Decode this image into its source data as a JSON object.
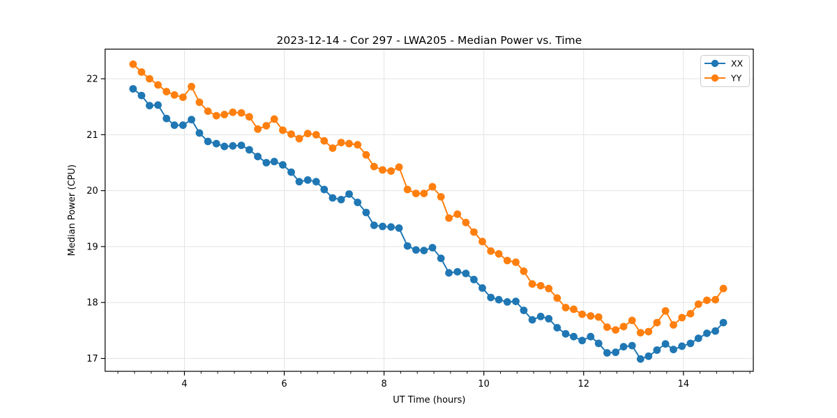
{
  "chart_data": {
    "type": "line",
    "title": "2023-12-14 - Cor 297 - LWA205 - Median Power vs. Time",
    "xlabel": "UT Time (hours)",
    "ylabel": "Median Power (CPU)",
    "xlim": [
      2.41,
      15.4
    ],
    "ylim": [
      16.77,
      22.53
    ],
    "x_major_ticks": [
      4,
      6,
      8,
      10,
      12,
      14
    ],
    "x_minor_tick_step": 0.3333,
    "y_major_ticks": [
      17,
      18,
      19,
      20,
      21,
      22
    ],
    "grid": true,
    "grid_color": "#e3e3e3",
    "spine_color": "#000000",
    "legend_position": "upper right",
    "legend_labels": [
      "XX",
      "YY"
    ],
    "x": [
      2.97,
      3.14,
      3.3,
      3.47,
      3.64,
      3.8,
      3.97,
      4.14,
      4.3,
      4.47,
      4.64,
      4.8,
      4.97,
      5.14,
      5.3,
      5.47,
      5.64,
      5.8,
      5.97,
      6.14,
      6.3,
      6.47,
      6.64,
      6.8,
      6.97,
      7.14,
      7.3,
      7.47,
      7.64,
      7.8,
      7.97,
      8.14,
      8.3,
      8.47,
      8.64,
      8.8,
      8.97,
      9.14,
      9.3,
      9.47,
      9.64,
      9.8,
      9.97,
      10.14,
      10.3,
      10.47,
      10.64,
      10.8,
      10.97,
      11.14,
      11.3,
      11.47,
      11.64,
      11.8,
      11.97,
      12.14,
      12.3,
      12.47,
      12.64,
      12.8,
      12.97,
      13.14,
      13.3,
      13.47,
      13.64,
      13.8,
      13.97,
      14.14,
      14.3,
      14.47,
      14.64,
      14.8
    ],
    "series": [
      {
        "name": "XX",
        "color": "#1f77b4",
        "values": [
          21.82,
          21.7,
          21.52,
          21.53,
          21.29,
          21.17,
          21.17,
          21.27,
          21.03,
          20.88,
          20.84,
          20.79,
          20.8,
          20.81,
          20.73,
          20.61,
          20.5,
          20.52,
          20.46,
          20.33,
          20.16,
          20.19,
          20.16,
          20.02,
          19.87,
          19.84,
          19.94,
          19.79,
          19.61,
          19.38,
          19.36,
          19.35,
          19.33,
          19.01,
          18.94,
          18.93,
          18.98,
          18.79,
          18.53,
          18.55,
          18.52,
          18.41,
          18.26,
          18.09,
          18.05,
          18.01,
          18.02,
          17.86,
          17.69,
          17.75,
          17.71,
          17.55,
          17.44,
          17.39,
          17.32,
          17.39,
          17.27,
          17.1,
          17.11,
          17.21,
          17.23,
          16.99,
          17.04,
          17.15,
          17.26,
          17.16,
          17.22,
          17.27,
          17.36,
          17.45,
          17.49,
          17.64
        ]
      },
      {
        "name": "YY",
        "color": "#ff7f0e",
        "values": [
          22.26,
          22.12,
          22.0,
          21.89,
          21.77,
          21.71,
          21.67,
          21.86,
          21.58,
          21.42,
          21.34,
          21.36,
          21.4,
          21.39,
          21.32,
          21.1,
          21.16,
          21.28,
          21.08,
          21.01,
          20.93,
          21.02,
          21.0,
          20.89,
          20.76,
          20.86,
          20.84,
          20.82,
          20.64,
          20.43,
          20.37,
          20.35,
          20.42,
          20.02,
          19.95,
          19.95,
          20.07,
          19.89,
          19.51,
          19.58,
          19.43,
          19.26,
          19.09,
          18.92,
          18.87,
          18.75,
          18.72,
          18.56,
          18.33,
          18.3,
          18.25,
          18.08,
          17.91,
          17.88,
          17.79,
          17.76,
          17.74,
          17.56,
          17.51,
          17.57,
          17.68,
          17.46,
          17.48,
          17.64,
          17.85,
          17.6,
          17.73,
          17.8,
          17.97,
          18.04,
          18.05,
          18.25
        ]
      }
    ]
  }
}
